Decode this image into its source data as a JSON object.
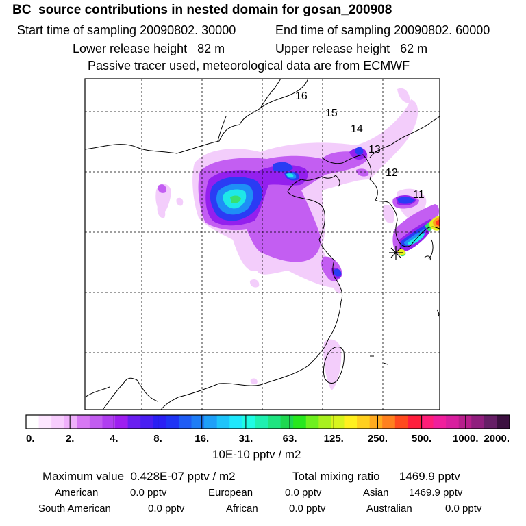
{
  "header": {
    "title": "BC  source contributions in nested domain for gosan_200908",
    "start_time": "Start time of sampling 20090802. 30000",
    "end_time": "End time of sampling 20090802. 60000",
    "lower_height": "Lower release height   82 m",
    "upper_height": "Upper release height   62 m",
    "tracer_note": "Passive tracer used, meteorological data are from ECMWF"
  },
  "map": {
    "trajectory_labels": [
      "16",
      "15",
      "14",
      "13",
      "12",
      "11"
    ],
    "receptor_symbol": "star-marker"
  },
  "colorbar": {
    "tick_labels": [
      "0.",
      "2.",
      "4.",
      "8.",
      "16.",
      "31.",
      "63.",
      "125.",
      "250.",
      "500.",
      "1000.",
      "2000."
    ],
    "colors": [
      "#ffffff",
      "#fde6ff",
      "#f7cdfd",
      "#efb0fb",
      "#d778f3",
      "#c25cf0",
      "#b03ef0",
      "#9e1ef0",
      "#6a1ef0",
      "#4a1ef2",
      "#2a1ff4",
      "#1f34f4",
      "#1f5cf4",
      "#1e7df6",
      "#1ea0f8",
      "#1ec4fa",
      "#1ee8fc",
      "#1efce4",
      "#1ef0b0",
      "#1ee480",
      "#1ed850",
      "#28e81e",
      "#6ef01e",
      "#a8f01e",
      "#d8f41e",
      "#fff01e",
      "#ffd01e",
      "#ffaa1e",
      "#ff801e",
      "#ff4a1e",
      "#ff1e3c",
      "#ff1e78",
      "#f01e9c",
      "#d81e9e",
      "#b81e8c",
      "#901e7e",
      "#661e66",
      "#3c1040"
    ],
    "unit": "10E-10 pptv / m2"
  },
  "summary": {
    "maximum": "Maximum value  0.428E-07 pptv / m2",
    "total_mixing": "Total mixing ratio      1469.9 pptv",
    "american_label": "American",
    "american_value": "0.0 pptv",
    "european_label": "European",
    "european_value": "0.0 pptv",
    "asian_label": "Asian",
    "asian_value": "1469.9 pptv",
    "south_american_label": "South American",
    "south_american_value": "0.0 pptv",
    "african_label": "African",
    "african_value": "0.0 pptv",
    "australian_label": "Australian",
    "australian_value": "0.0 pptv"
  },
  "palette": {
    "light_purple": "#f2c8fb",
    "purple": "#c060f5",
    "violet": "#9a20f0",
    "blue": "#2a3cf4",
    "azure": "#1e90f6",
    "cyan": "#1ee8e8",
    "green": "#40e07a",
    "yellow": "#f0f01e",
    "orange": "#ffa01e",
    "red": "#ff3a1e"
  }
}
